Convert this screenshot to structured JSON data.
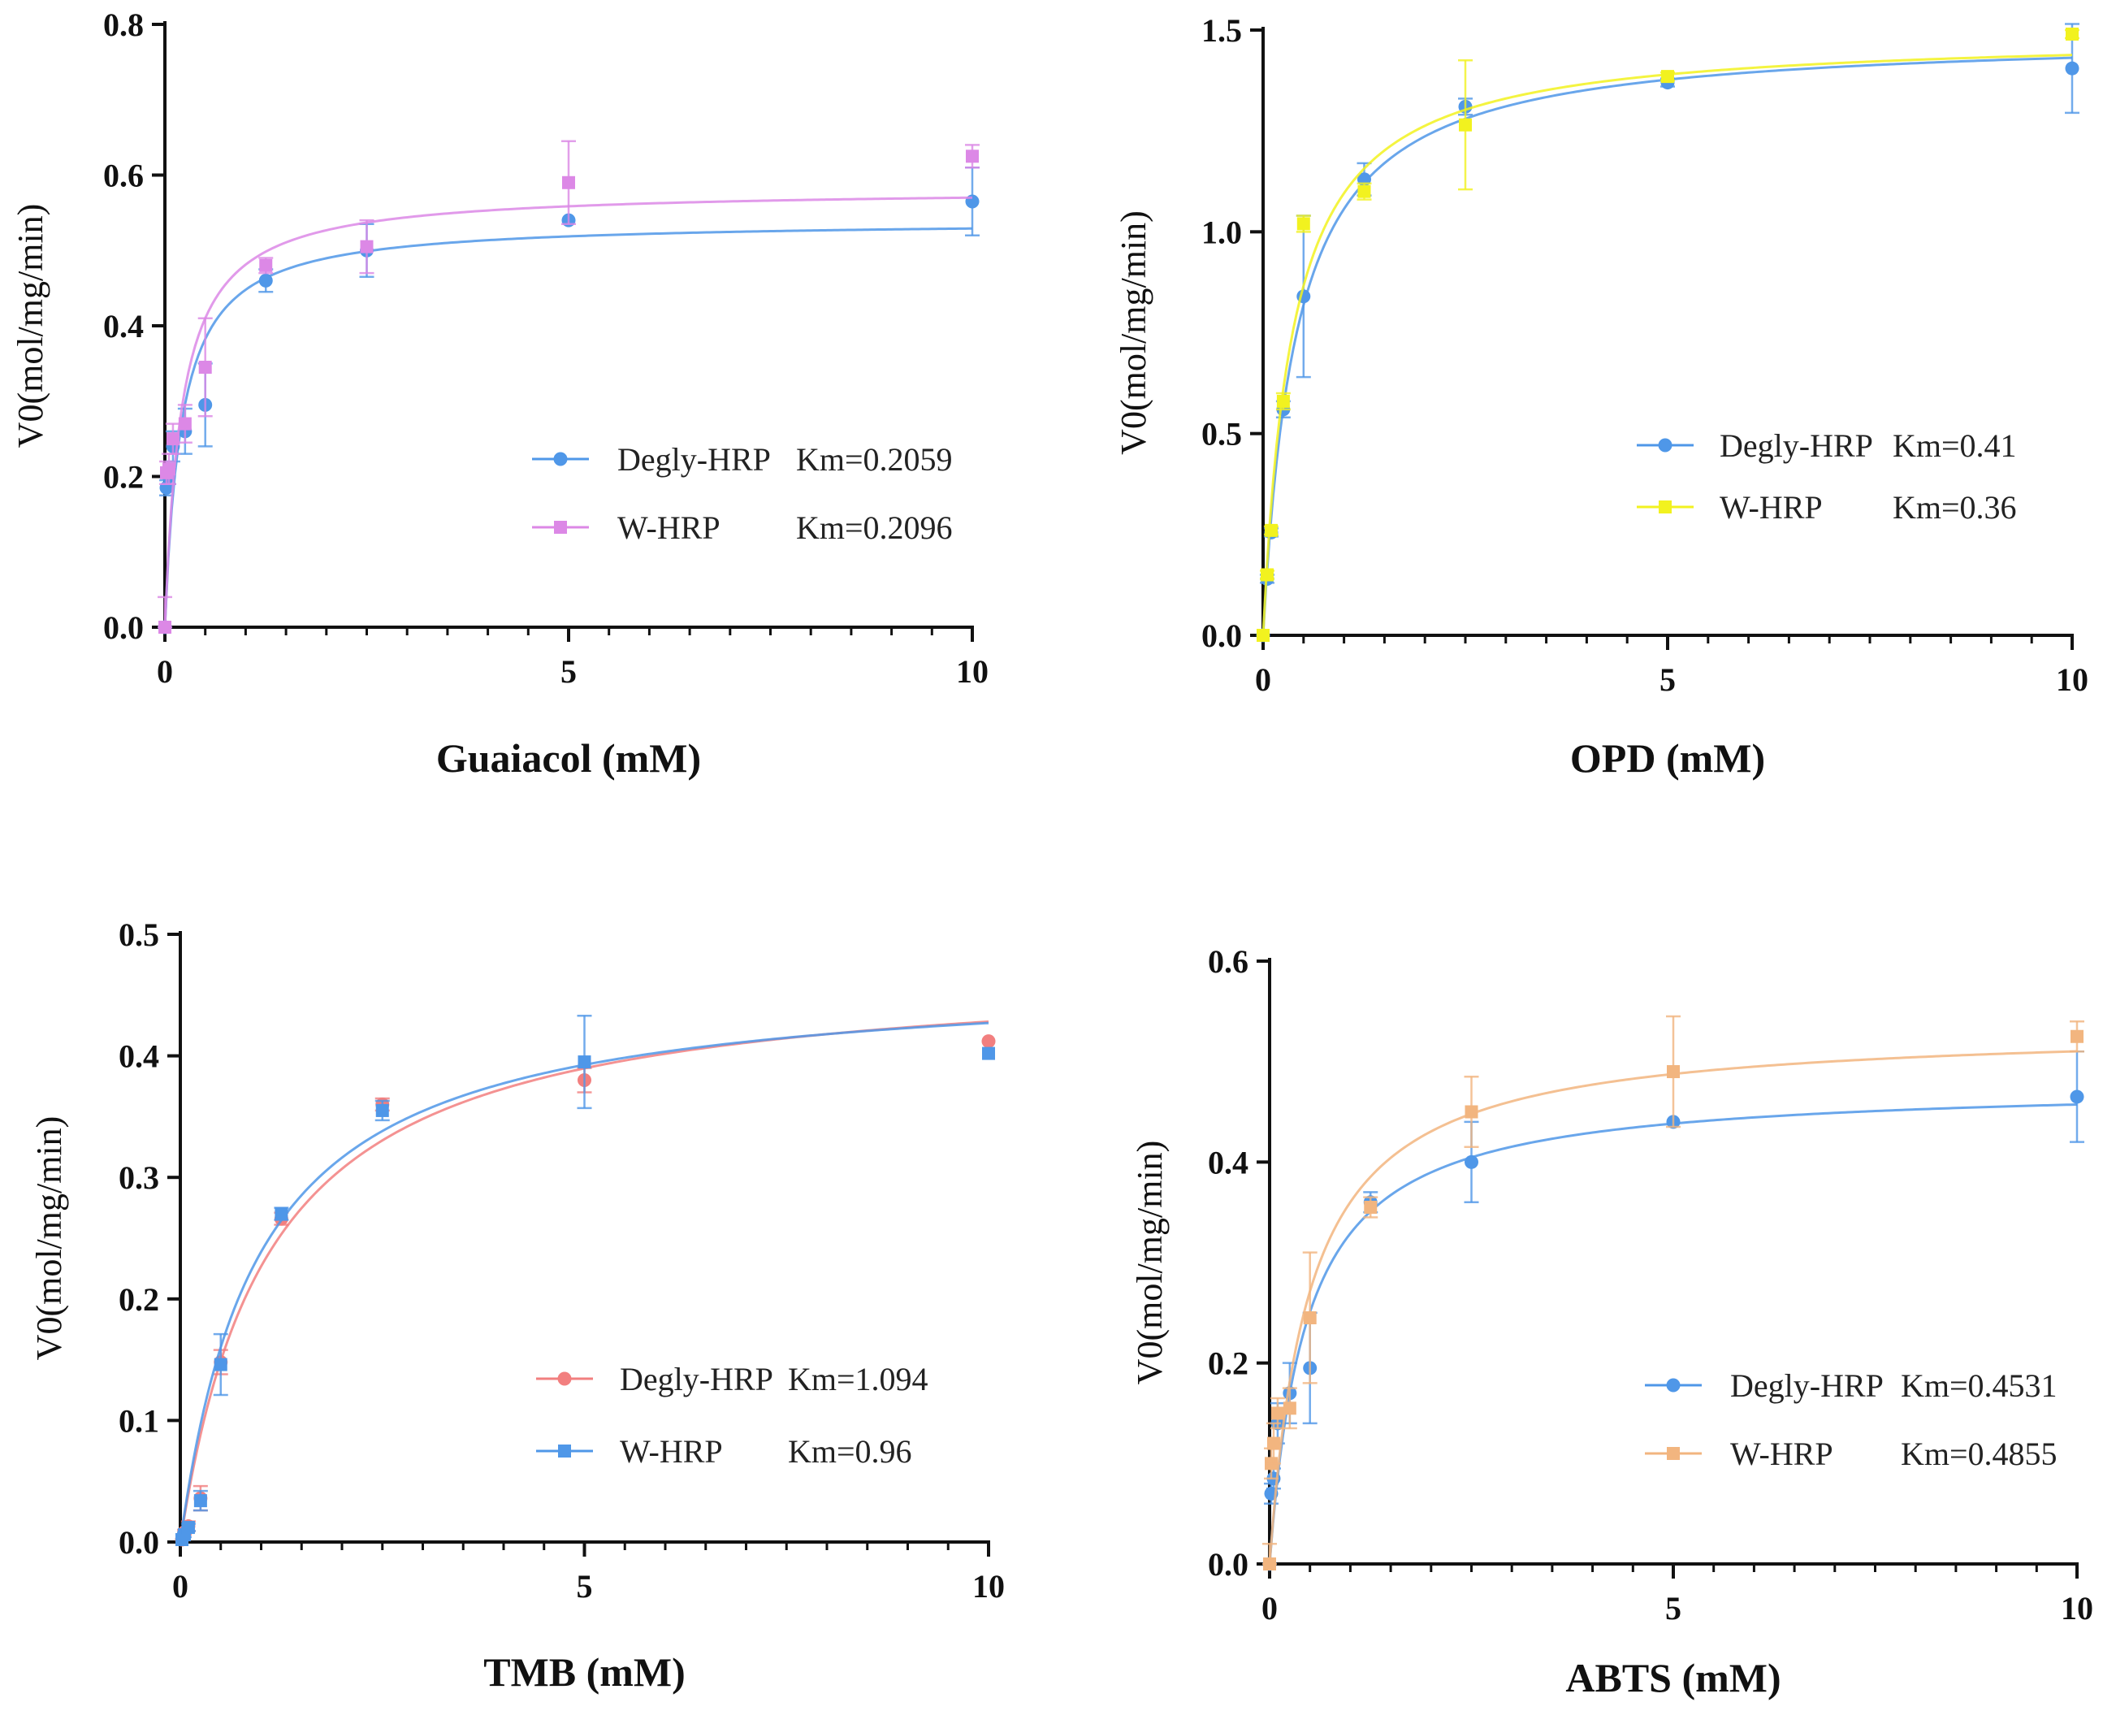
{
  "chart_data": [
    {
      "type": "scatter",
      "title": "",
      "xlabel": "Guaiacol (mM)",
      "ylabel": "V0(mol/mg/min)",
      "xlim": [
        0,
        10
      ],
      "ylim": [
        0,
        0.8
      ],
      "xticks": [
        0,
        5,
        10
      ],
      "xtick_labels": [
        "0",
        "5",
        "10"
      ],
      "yticks": [
        0,
        0.2,
        0.4,
        0.6,
        0.8
      ],
      "ytick_labels": [
        "0.0",
        "0.2",
        "0.4",
        "0.6",
        "0.8"
      ],
      "x_minor_step": 0.5,
      "legend_position": "lower-right",
      "series": [
        {
          "name": "Degly-HRP",
          "legend_label": "Degly-HRP",
          "km_label": "Km=0.2059",
          "color": "#4f97e8",
          "marker": "circle",
          "fit": {
            "model": "michaelis-menten",
            "vmax": 0.54,
            "km": 0.2059
          },
          "x": [
            0,
            0.02,
            0.05,
            0.1,
            0.25,
            0.5,
            1.25,
            2.5,
            5,
            10
          ],
          "y": [
            0,
            0.185,
            0.2,
            0.24,
            0.26,
            0.295,
            0.46,
            0.5,
            0.54,
            0.565
          ],
          "err": [
            0,
            0.01,
            0.01,
            0.02,
            0.03,
            0.055,
            0.015,
            0.035,
            0,
            0.045
          ]
        },
        {
          "name": "W-HRP",
          "legend_label": "W-HRP",
          "km_label": "Km=0.2096",
          "color": "#dc88e6",
          "marker": "square",
          "fit": {
            "model": "michaelis-menten",
            "vmax": 0.582,
            "km": 0.2096
          },
          "x": [
            0,
            0.02,
            0.05,
            0.1,
            0.25,
            0.5,
            1.25,
            2.5,
            5,
            10
          ],
          "y": [
            0,
            0.205,
            0.21,
            0.25,
            0.27,
            0.345,
            0.48,
            0.505,
            0.59,
            0.625
          ],
          "err": [
            0.04,
            0.015,
            0.02,
            0.02,
            0.025,
            0.065,
            0.01,
            0.035,
            0.055,
            0.015
          ]
        }
      ]
    },
    {
      "type": "scatter",
      "title": "",
      "xlabel": "OPD (mM)",
      "ylabel": "V0(mol/mg/min)",
      "xlim": [
        0,
        10
      ],
      "ylim": [
        0,
        1.5
      ],
      "xticks": [
        0,
        5,
        10
      ],
      "xtick_labels": [
        "0",
        "5",
        "10"
      ],
      "yticks": [
        0,
        0.5,
        1.0,
        1.5
      ],
      "ytick_labels": [
        "0.0",
        "0.5",
        "1.0",
        "1.5"
      ],
      "x_minor_step": 0.5,
      "legend_position": "center-right",
      "series": [
        {
          "name": "Degly-HRP",
          "legend_label": "Degly-HRP",
          "km_label": "Km=0.41",
          "color": "#4f97e8",
          "marker": "circle",
          "fit": {
            "model": "michaelis-menten",
            "vmax": 1.49,
            "km": 0.41
          },
          "x": [
            0,
            0.05,
            0.1,
            0.25,
            0.5,
            1.25,
            2.5,
            5,
            10
          ],
          "y": [
            0,
            0.14,
            0.255,
            0.56,
            0.84,
            1.13,
            1.31,
            1.37,
            1.405
          ],
          "err": [
            0,
            0.01,
            0.01,
            0.02,
            0.2,
            0.04,
            0.02,
            0.01,
            0.11
          ]
        },
        {
          "name": "W-HRP",
          "legend_label": "W-HRP",
          "km_label": "Km=0.36",
          "color": "#f2f21f",
          "marker": "square",
          "fit": {
            "model": "michaelis-menten",
            "vmax": 1.49,
            "km": 0.36
          },
          "x": [
            0,
            0.05,
            0.1,
            0.25,
            0.5,
            1.25,
            2.5,
            5,
            10
          ],
          "y": [
            0,
            0.15,
            0.26,
            0.58,
            1.02,
            1.1,
            1.265,
            1.385,
            1.49
          ],
          "err": [
            0,
            0.01,
            0.01,
            0.02,
            0.02,
            0.02,
            0.16,
            0.01,
            0.01
          ]
        }
      ]
    },
    {
      "type": "scatter",
      "title": "",
      "xlabel": "TMB (mM)",
      "ylabel": "V0(mol/mg/min)",
      "xlim": [
        0,
        10
      ],
      "ylim": [
        0,
        0.5
      ],
      "xticks": [
        0,
        5,
        10
      ],
      "xtick_labels": [
        "0",
        "5",
        "10"
      ],
      "yticks": [
        0,
        0.1,
        0.2,
        0.3,
        0.4,
        0.5
      ],
      "ytick_labels": [
        "0.0",
        "0.1",
        "0.2",
        "0.3",
        "0.4",
        "0.5"
      ],
      "x_minor_step": 0.5,
      "legend_position": "lower-right",
      "series": [
        {
          "name": "Degly-HRP",
          "legend_label": "Degly-HRP",
          "km_label": "Km=1.094",
          "color": "#f27f7f",
          "marker": "circle",
          "fit": {
            "model": "michaelis-menten",
            "vmax": 0.475,
            "km": 1.094
          },
          "x": [
            0.02,
            0.05,
            0.1,
            0.25,
            0.5,
            1.25,
            2.5,
            5,
            10
          ],
          "y": [
            0.002,
            0.008,
            0.013,
            0.036,
            0.148,
            0.266,
            0.36,
            0.38,
            0.412
          ],
          "err": [
            0,
            0.002,
            0.004,
            0.01,
            0.01,
            0.005,
            0.005,
            0.01,
            0
          ]
        },
        {
          "name": "W-HRP",
          "legend_label": "W-HRP",
          "km_label": "Km=0.96",
          "color": "#4f97e8",
          "marker": "square",
          "fit": {
            "model": "michaelis-menten",
            "vmax": 0.468,
            "km": 0.96
          },
          "x": [
            0.02,
            0.05,
            0.1,
            0.25,
            0.5,
            1.25,
            2.5,
            5,
            10
          ],
          "y": [
            0.002,
            0.006,
            0.012,
            0.034,
            0.146,
            0.27,
            0.355,
            0.395,
            0.402
          ],
          "err": [
            0,
            0.002,
            0.003,
            0.008,
            0.025,
            0.005,
            0.008,
            0.038,
            0
          ]
        }
      ]
    },
    {
      "type": "scatter",
      "title": "",
      "xlabel": "ABTS (mM)",
      "ylabel": "V0(mol/mg/min)",
      "xlim": [
        0,
        10
      ],
      "ylim": [
        0,
        0.6
      ],
      "xticks": [
        0,
        5,
        10
      ],
      "xtick_labels": [
        "0",
        "5",
        "10"
      ],
      "yticks": [
        0,
        0.2,
        0.4,
        0.6
      ],
      "ytick_labels": [
        "0.0",
        "0.2",
        "0.4",
        "0.6"
      ],
      "x_minor_step": 0.5,
      "legend_position": "lower-right",
      "series": [
        {
          "name": "Degly-HRP",
          "legend_label": "Degly-HRP",
          "km_label": "Km=0.4531",
          "color": "#4f97e8",
          "marker": "circle",
          "fit": {
            "model": "michaelis-menten",
            "vmax": 0.478,
            "km": 0.4531
          },
          "x": [
            0,
            0.02,
            0.05,
            0.1,
            0.25,
            0.5,
            1.25,
            2.5,
            5,
            10
          ],
          "y": [
            0,
            0.07,
            0.085,
            0.14,
            0.17,
            0.195,
            0.36,
            0.4,
            0.44,
            0.465
          ],
          "err": [
            0,
            0.01,
            0.01,
            0.02,
            0.03,
            0.055,
            0.01,
            0.04,
            0,
            0.045
          ]
        },
        {
          "name": "W-HRP",
          "legend_label": "W-HRP",
          "km_label": "Km=0.4855",
          "color": "#f2b57f",
          "marker": "square",
          "fit": {
            "model": "michaelis-menten",
            "vmax": 0.535,
            "km": 0.4855
          },
          "x": [
            0,
            0.02,
            0.05,
            0.1,
            0.25,
            0.5,
            1.25,
            2.5,
            5,
            10
          ],
          "y": [
            0,
            0.1,
            0.12,
            0.15,
            0.155,
            0.245,
            0.355,
            0.45,
            0.49,
            0.525
          ],
          "err": [
            0.02,
            0.015,
            0.02,
            0.015,
            0.02,
            0.065,
            0.01,
            0.035,
            0.055,
            0.015
          ]
        }
      ]
    }
  ]
}
